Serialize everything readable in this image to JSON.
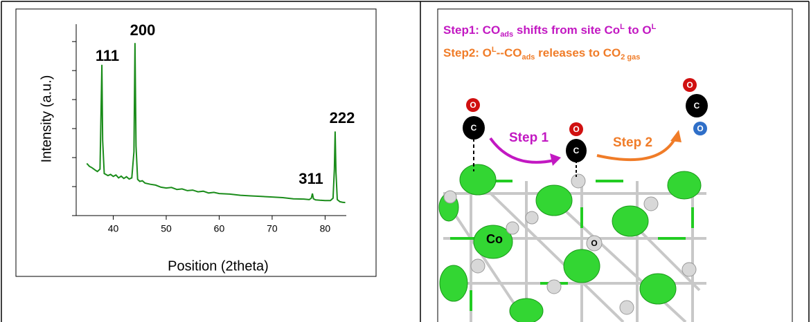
{
  "chart_data": {
    "type": "line",
    "xlabel": "Position (2theta)",
    "ylabel": "Intensity (a.u.)",
    "x": [
      35,
      35.5,
      36,
      36.5,
      37,
      37.5,
      37.7,
      37.85,
      38,
      38.3,
      39,
      39.5,
      40,
      40.5,
      41,
      41.5,
      42,
      42.5,
      43,
      43.5,
      43.9,
      44.1,
      44.3,
      44.6,
      45,
      45.5,
      46,
      47,
      48,
      49,
      50,
      51,
      52,
      53,
      54,
      55,
      56,
      57,
      58,
      59,
      60,
      62,
      64,
      66,
      68,
      70,
      72,
      74,
      76,
      77,
      77.4,
      77.6,
      77.8,
      78.2,
      79,
      80,
      81,
      81.5,
      81.75,
      81.9,
      82.05,
      82.3,
      82.8,
      83.3,
      83.8
    ],
    "values": [
      1.8,
      1.7,
      1.65,
      1.58,
      1.52,
      1.6,
      3.6,
      5.2,
      2.6,
      1.45,
      1.38,
      1.42,
      1.35,
      1.4,
      1.3,
      1.36,
      1.28,
      1.34,
      1.26,
      1.3,
      2.2,
      5.95,
      2.4,
      1.25,
      1.18,
      1.2,
      1.12,
      1.08,
      1.05,
      0.98,
      0.95,
      0.97,
      0.9,
      0.92,
      0.86,
      0.88,
      0.82,
      0.84,
      0.78,
      0.8,
      0.76,
      0.74,
      0.7,
      0.68,
      0.66,
      0.64,
      0.62,
      0.58,
      0.57,
      0.55,
      0.6,
      0.76,
      0.58,
      0.54,
      0.53,
      0.52,
      0.52,
      0.6,
      1.6,
      2.9,
      1.5,
      0.55,
      0.48,
      0.46,
      0.45
    ],
    "color": "#1a8c1a",
    "xlim": [
      33,
      84
    ],
    "xticks": [
      40,
      50,
      60,
      70,
      80
    ],
    "ylim": [
      0,
      6.6
    ],
    "yticks": [
      0,
      1,
      2,
      3,
      4,
      5,
      6
    ],
    "annotations": [
      "111",
      "200",
      "311",
      "222"
    ]
  },
  "diagram": {
    "caption_lines": [
      [
        "Step1: CO",
        "ads",
        " shifts from site Co",
        "L",
        " to O",
        "L"
      ],
      [
        "Step2: O",
        "L",
        "--CO",
        "ads",
        " releases to CO",
        "2 gas"
      ]
    ],
    "arrows": [
      "Step 1",
      "Step 2"
    ],
    "atoms": [
      "O",
      "C",
      "O",
      "C",
      "O",
      "C",
      "O",
      "Co",
      "O"
    ]
  }
}
